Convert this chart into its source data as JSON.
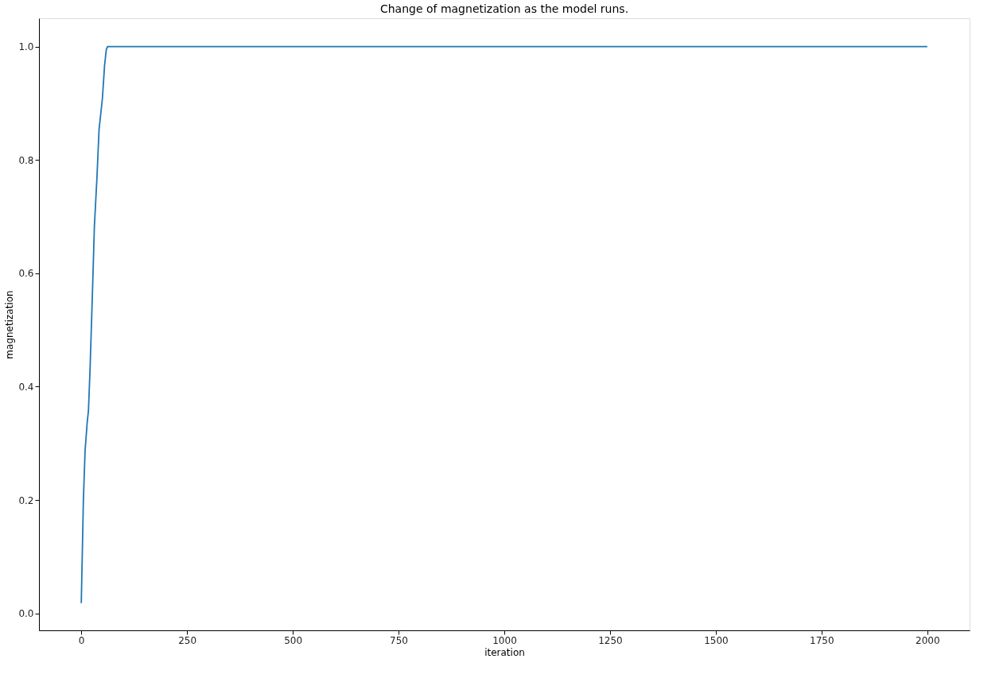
{
  "chart_data": {
    "type": "line",
    "title": "Change of magnetization as the model runs.",
    "xlabel": "iteration",
    "ylabel": "magnetization",
    "series": [
      {
        "color": "#1f77b4",
        "x": [
          0,
          5,
          9,
          14,
          17,
          21,
          26,
          31,
          37,
          42,
          50,
          55,
          59,
          62,
          2000
        ],
        "values": [
          0.018,
          0.2,
          0.287,
          0.337,
          0.358,
          0.436,
          0.556,
          0.683,
          0.768,
          0.853,
          0.909,
          0.966,
          0.994,
          1.0,
          1.0
        ]
      }
    ],
    "xlim": [
      -100,
      2100
    ],
    "xticks": [
      0,
      250,
      500,
      750,
      1000,
      1250,
      1500,
      1750,
      2000
    ],
    "ylim": [
      -0.03,
      1.05
    ],
    "yticks": [
      {
        "value": 0,
        "label": "0.0"
      },
      {
        "value": 0.2,
        "label": "0.2"
      },
      {
        "value": 0.4,
        "label": "0.4"
      },
      {
        "value": 0.6,
        "label": "0.6"
      },
      {
        "value": 0.8,
        "label": "0.8"
      },
      {
        "value": 1,
        "label": "1.0"
      }
    ],
    "grid": false,
    "marker": "none",
    "line_style": "solid"
  }
}
